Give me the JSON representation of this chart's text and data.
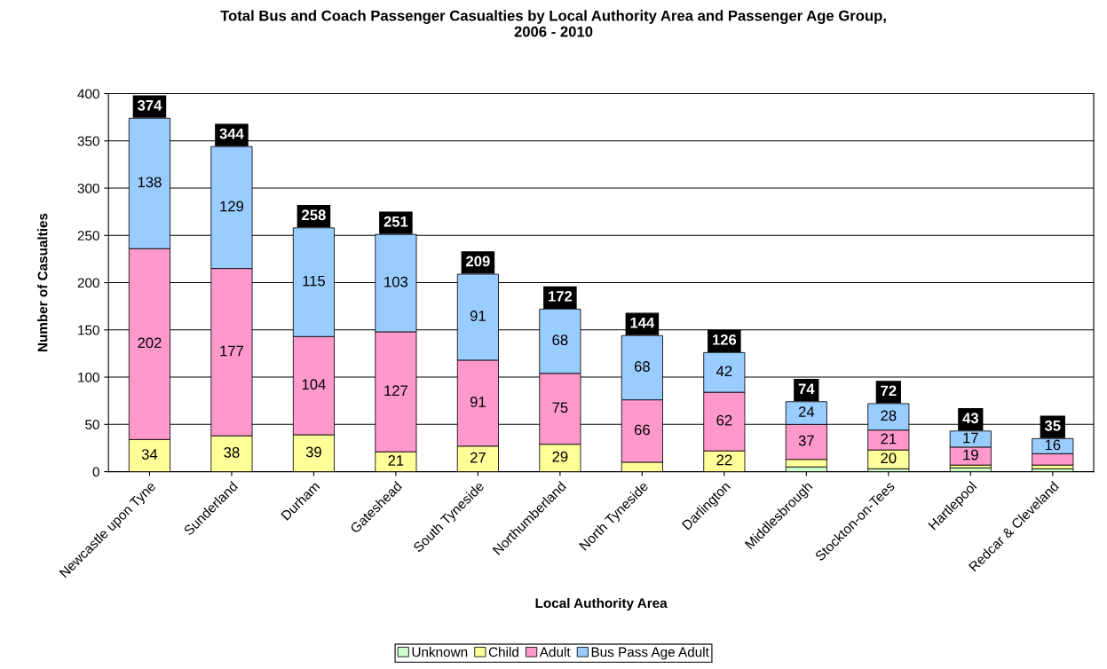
{
  "chart_data": {
    "type": "bar",
    "stacked": true,
    "title": "Total Bus and Coach Passenger Casualties by Local Authority Area and Passenger Age Group,\n2006 - 2010",
    "xlabel": "Local Authority Area",
    "ylabel": "Number of Casualties",
    "categories": [
      "Newcastle upon Tyne",
      "Sunderland",
      "Durham",
      "Gateshead",
      "South Tyneside",
      "Northumberland",
      "North Tyneside",
      "Darlington",
      "Middlesbrough",
      "Stockton-on-Tees",
      "Hartlepool",
      "Redcar & Cleveland"
    ],
    "series": [
      {
        "name": "Unknown",
        "color": "#ccffcc",
        "values": [
          0,
          0,
          0,
          0,
          0,
          0,
          0,
          0,
          5,
          3,
          4,
          3
        ],
        "value_labels": [
          null,
          null,
          null,
          null,
          null,
          null,
          null,
          null,
          null,
          null,
          null,
          null
        ]
      },
      {
        "name": "Child",
        "color": "#ffff99",
        "values": [
          34,
          38,
          39,
          21,
          27,
          29,
          10,
          22,
          8,
          20,
          3,
          4
        ],
        "value_labels": [
          "34",
          "38",
          "39",
          "21",
          "27",
          "29",
          null,
          "22",
          null,
          "20",
          null,
          null
        ]
      },
      {
        "name": "Adult",
        "color": "#ff99cc",
        "values": [
          202,
          177,
          104,
          127,
          91,
          75,
          66,
          62,
          37,
          21,
          19,
          12
        ],
        "value_labels": [
          "202",
          "177",
          "104",
          "127",
          "91",
          "75",
          "66",
          "62",
          "37",
          "21",
          "19",
          null
        ]
      },
      {
        "name": "Bus Pass Age Adult",
        "color": "#99ccff",
        "values": [
          138,
          129,
          115,
          103,
          91,
          68,
          68,
          42,
          24,
          28,
          17,
          16
        ],
        "value_labels": [
          "138",
          "129",
          "115",
          "103",
          "91",
          "68",
          "68",
          "42",
          "24",
          "28",
          "17",
          "16"
        ]
      }
    ],
    "totals": [
      "374",
      "344",
      "258",
      "251",
      "209",
      "172",
      "144",
      "126",
      "74",
      "72",
      "43",
      "35"
    ],
    "ylim": [
      0,
      400
    ],
    "yticks": [
      0,
      50,
      100,
      150,
      200,
      250,
      300,
      350,
      400
    ],
    "grid": "y",
    "legend": "bottom"
  }
}
